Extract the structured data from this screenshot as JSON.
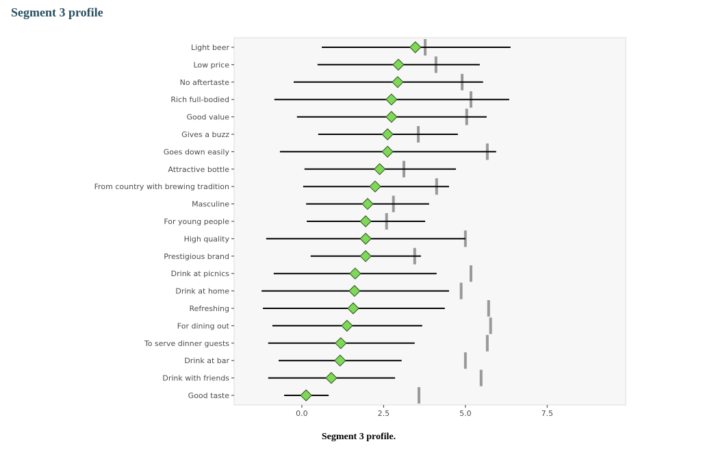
{
  "page": {
    "title": "Segment 3 profile",
    "caption": "Segment 3 profile."
  },
  "chart_data": {
    "type": "dot-range",
    "title": "",
    "xlabel": "",
    "ylabel": "",
    "xlim": [
      -2.07,
      9.9
    ],
    "xticks": [
      "0.0",
      "2.5",
      "5.0",
      "7.5"
    ],
    "xtick_values": [
      0,
      2.5,
      5,
      7.5
    ],
    "grid": false,
    "colors": {
      "marker": "#7ed957",
      "reference": "#999999",
      "range": "#000000",
      "panel": "#f7f7f7"
    },
    "categories": [
      "Light beer",
      "Low price",
      "No aftertaste",
      "Rich full-bodied",
      "Good value",
      "Gives a buzz",
      "Goes down easily",
      "Attractive bottle",
      "From country with brewing tradition",
      "Masculine",
      "For young people",
      "High quality",
      "Prestigious brand",
      "Drink at picnics",
      "Drink at home",
      "Refreshing",
      "For dining out",
      "To serve dinner guests",
      "Drink at bar",
      "Drink with friends",
      "Good taste"
    ],
    "series": [
      {
        "values": [
          3.47,
          2.95,
          2.93,
          2.74,
          2.74,
          2.62,
          2.62,
          2.38,
          2.24,
          2.01,
          1.95,
          1.95,
          1.95,
          1.63,
          1.61,
          1.57,
          1.38,
          1.19,
          1.17,
          0.9,
          0.13
        ]
      },
      {
        "role": "range_low",
        "values": [
          0.61,
          0.48,
          -0.25,
          -0.84,
          -0.15,
          0.5,
          -0.67,
          0.08,
          0.04,
          0.13,
          0.15,
          -1.09,
          0.27,
          -0.86,
          -1.23,
          -1.19,
          -0.9,
          -1.03,
          -0.71,
          -1.03,
          -0.54
        ]
      },
      {
        "role": "range_high",
        "values": [
          6.38,
          5.44,
          5.54,
          6.34,
          5.65,
          4.77,
          5.94,
          4.71,
          4.5,
          3.89,
          3.77,
          5.0,
          3.64,
          4.12,
          4.5,
          4.37,
          3.68,
          3.45,
          3.05,
          2.85,
          0.82
        ]
      },
      {
        "role": "reference",
        "values": [
          3.77,
          4.1,
          4.9,
          5.17,
          5.04,
          3.56,
          5.67,
          3.12,
          4.12,
          2.8,
          2.59,
          5.0,
          3.45,
          5.17,
          4.87,
          5.71,
          5.77,
          5.67,
          5.0,
          5.48,
          3.58
        ]
      }
    ]
  }
}
